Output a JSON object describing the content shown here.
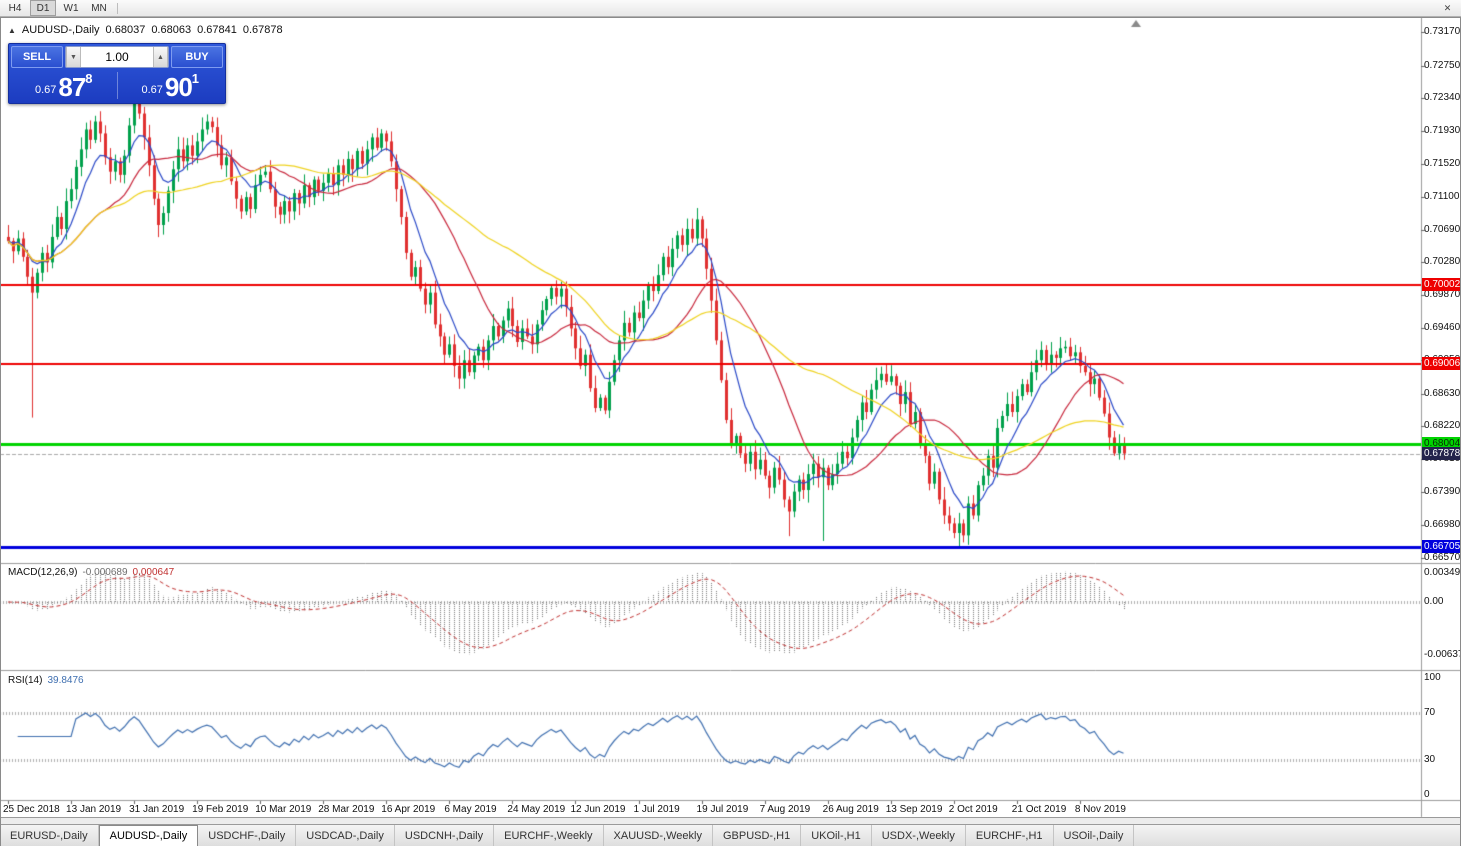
{
  "toolbar": {
    "timeframes": [
      "H4",
      "D1",
      "W1",
      "MN"
    ],
    "active": "D1"
  },
  "icons": {
    "chart": "▲",
    "close": "✕",
    "vol_down": "▼",
    "vol_up": "▲"
  },
  "chart": {
    "title_symbol": "AUDUSD-,Daily",
    "ohlc": {
      "open": "0.68037",
      "high": "0.68063",
      "low": "0.67841",
      "close": "0.67878"
    }
  },
  "trade_panel": {
    "sell_label": "SELL",
    "buy_label": "BUY",
    "volume": "1.00",
    "sell_price_prefix": "0.67",
    "sell_price_big": "87",
    "sell_price_sup": "8",
    "buy_price_prefix": "0.67",
    "buy_price_big": "90",
    "buy_price_sup": "1"
  },
  "price_axis": {
    "ticks": [
      "0.73170",
      "0.72750",
      "0.72340",
      "0.71930",
      "0.71520",
      "0.71100",
      "0.70690",
      "0.70280",
      "0.69870",
      "0.69460",
      "0.69050",
      "0.68630",
      "0.68220",
      "0.67810",
      "0.67390",
      "0.66980",
      "0.66570"
    ],
    "line_labels": [
      {
        "text": "0.70002",
        "price": 0.70002,
        "bg": "#EE0000",
        "fg": "#FFFFFF"
      },
      {
        "text": "0.69006",
        "price": 0.69006,
        "bg": "#EE0000",
        "fg": "#FFFFFF"
      },
      {
        "text": "0.68004",
        "price": 0.68004,
        "bg": "#00D400",
        "fg": "#062806"
      },
      {
        "text": "0.67878",
        "price": 0.67878,
        "bg": "#23234B",
        "fg": "#FFFFFF"
      },
      {
        "text": "0.66705",
        "price": 0.66705,
        "bg": "#0000DD",
        "fg": "#FFFFFF"
      }
    ]
  },
  "indicators": {
    "macd": {
      "name": "MACD(12,26,9)",
      "value_main": "-0.000689",
      "value_signal": "0.000647",
      "axis": [
        "0.00349",
        "0.00",
        "-0.00637"
      ]
    },
    "rsi": {
      "name": "RSI(14)",
      "value": "39.8476",
      "axis": [
        "100",
        "70",
        "30",
        "0"
      ]
    }
  },
  "tabs": {
    "items": [
      "EURUSD-,Daily",
      "AUDUSD-,Daily",
      "USDCHF-,Daily",
      "USDCAD-,Daily",
      "USDCNH-,Daily",
      "EURCHF-,Weekly",
      "XAUUSD-,Weekly",
      "GBPUSD-,H1",
      "UKOil-,H1",
      "USDX-,Weekly",
      "EURCHF-,H1",
      "USOil-,Daily"
    ],
    "active_index": 1
  },
  "chart_data": {
    "type": "candlestick",
    "symbol": "AUDUSD",
    "timeframe": "Daily",
    "current_price": 0.67878,
    "price_range": {
      "min": 0.66528,
      "max": 0.73225
    },
    "date_labels": [
      "25 Dec 2018",
      "13 Jan 2019",
      "31 Jan 2019",
      "19 Feb 2019",
      "10 Mar 2019",
      "28 Mar 2019",
      "16 Apr 2019",
      "6 May 2019",
      "24 May 2019",
      "12 Jun 2019",
      "1 Jul 2019",
      "19 Jul 2019",
      "7 Aug 2019",
      "26 Aug 2019",
      "13 Sep 2019",
      "2 Oct 2019",
      "21 Oct 2019",
      "8 Nov 2019"
    ],
    "candles_per_label": 13,
    "first_open": 0.706,
    "closes": [
      0.7055,
      0.7042,
      0.7058,
      0.7035,
      0.701,
      0.699,
      0.7015,
      0.704,
      0.7028,
      0.706,
      0.7085,
      0.707,
      0.7105,
      0.712,
      0.7148,
      0.717,
      0.7195,
      0.7182,
      0.7205,
      0.719,
      0.716,
      0.7142,
      0.7155,
      0.7138,
      0.7162,
      0.72,
      0.723,
      0.7215,
      0.7185,
      0.715,
      0.7108,
      0.7075,
      0.709,
      0.7118,
      0.7145,
      0.717,
      0.7155,
      0.7175,
      0.7162,
      0.718,
      0.7195,
      0.7205,
      0.7198,
      0.7175,
      0.715,
      0.716,
      0.713,
      0.7108,
      0.7092,
      0.711,
      0.7095,
      0.7125,
      0.7138,
      0.7142,
      0.712,
      0.7098,
      0.7088,
      0.7105,
      0.7092,
      0.7115,
      0.7102,
      0.7125,
      0.711,
      0.7132,
      0.7118,
      0.7128,
      0.714,
      0.7125,
      0.715,
      0.7138,
      0.7158,
      0.7145,
      0.7168,
      0.7152,
      0.717,
      0.7185,
      0.7172,
      0.719,
      0.718,
      0.7155,
      0.712,
      0.7085,
      0.704,
      0.701,
      0.7022,
      0.6995,
      0.6975,
      0.699,
      0.695,
      0.6935,
      0.6912,
      0.6925,
      0.6898,
      0.6882,
      0.6905,
      0.689,
      0.6911,
      0.6922,
      0.6905,
      0.693,
      0.6948,
      0.6935,
      0.6955,
      0.697,
      0.6948,
      0.6928,
      0.6945,
      0.6935,
      0.6925,
      0.695,
      0.6968,
      0.6982,
      0.6996,
      0.6985,
      0.6995,
      0.6972,
      0.6945,
      0.692,
      0.6898,
      0.6912,
      0.687,
      0.6845,
      0.6858,
      0.6842,
      0.6878,
      0.6905,
      0.693,
      0.6952,
      0.694,
      0.6965,
      0.6958,
      0.698,
      0.7,
      0.6992,
      0.7012,
      0.7035,
      0.7022,
      0.7045,
      0.7062,
      0.705,
      0.707,
      0.7058,
      0.7082,
      0.7058,
      0.702,
      0.698,
      0.693,
      0.688,
      0.683,
      0.68,
      0.681,
      0.6788,
      0.6775,
      0.679,
      0.6768,
      0.678,
      0.676,
      0.6745,
      0.677,
      0.6755,
      0.673,
      0.6715,
      0.674,
      0.6755,
      0.6742,
      0.6762,
      0.6775,
      0.6758,
      0.677,
      0.6748,
      0.6762,
      0.6775,
      0.679,
      0.6782,
      0.6808,
      0.683,
      0.6852,
      0.684,
      0.6868,
      0.688,
      0.6888,
      0.6878,
      0.6885,
      0.6873,
      0.685,
      0.6865,
      0.6825,
      0.684,
      0.68,
      0.6785,
      0.675,
      0.6765,
      0.673,
      0.671,
      0.67,
      0.6688,
      0.67,
      0.6685,
      0.6725,
      0.671,
      0.6748,
      0.676,
      0.6785,
      0.677,
      0.682,
      0.6835,
      0.685,
      0.684,
      0.686,
      0.6875,
      0.6865,
      0.689,
      0.6905,
      0.6918,
      0.69,
      0.6912,
      0.6908,
      0.692,
      0.6922,
      0.691,
      0.6915,
      0.6898,
      0.689,
      0.6875,
      0.6882,
      0.6858,
      0.6838,
      0.6808,
      0.6788,
      0.6798,
      0.67878
    ],
    "spikes": [
      {
        "i": 5,
        "low": 0.6833
      },
      {
        "i": 142,
        "high": 0.7086
      },
      {
        "i": 161,
        "low": 0.6684
      },
      {
        "i": 168,
        "low": 0.6678
      },
      {
        "i": 196,
        "low": 0.6671
      }
    ],
    "hlines": [
      {
        "price": 0.70002,
        "color": "#EE0000",
        "width": 2
      },
      {
        "price": 0.69006,
        "color": "#EE0000",
        "width": 2
      },
      {
        "price": 0.68004,
        "color": "#00D400",
        "width": 3
      },
      {
        "price": 0.66705,
        "color": "#0000DD",
        "width": 3
      }
    ],
    "moving_averages": [
      {
        "type": "ema",
        "period": 8,
        "color": "#2A49C8"
      },
      {
        "type": "sma",
        "period": 21,
        "color": "#C8273C"
      },
      {
        "type": "sma",
        "period": 45,
        "color": "#EFD320"
      }
    ],
    "colors": {
      "bull": "#00A14B",
      "bear": "#E03030",
      "macd_hist": "#7a7a7a",
      "macd_signal": "#C03030",
      "rsi": "#4070B0",
      "current_price_line": "#a8a8a8"
    },
    "macd_settings": {
      "fast": 12,
      "slow": 26,
      "signal": 9
    },
    "rsi_period": 14
  }
}
